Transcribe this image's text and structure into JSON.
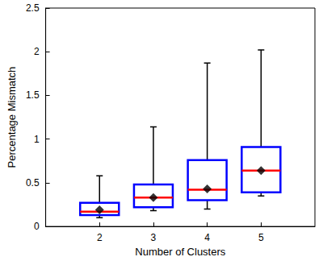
{
  "chart_data": {
    "type": "boxplot",
    "xlabel": "Number of Clusters",
    "ylabel": "Percentage Mismatch",
    "x": [
      2,
      3,
      4,
      5
    ],
    "min": [
      0.1,
      0.18,
      0.2,
      0.35
    ],
    "q1": [
      0.13,
      0.22,
      0.3,
      0.39
    ],
    "median": [
      0.17,
      0.33,
      0.42,
      0.64
    ],
    "q3": [
      0.27,
      0.48,
      0.76,
      0.91
    ],
    "max": [
      0.58,
      1.14,
      1.87,
      2.02
    ],
    "mean": [
      0.19,
      0.33,
      0.43,
      0.64
    ],
    "color": "#0000ff",
    "marker": "diamond",
    "xlim": [
      1,
      6
    ],
    "xticks": [
      2,
      3,
      4,
      5
    ],
    "ylim": [
      0,
      2.5
    ],
    "yticks": [
      0,
      0.5,
      1,
      1.5,
      2,
      2.5
    ],
    "grid": false
  }
}
